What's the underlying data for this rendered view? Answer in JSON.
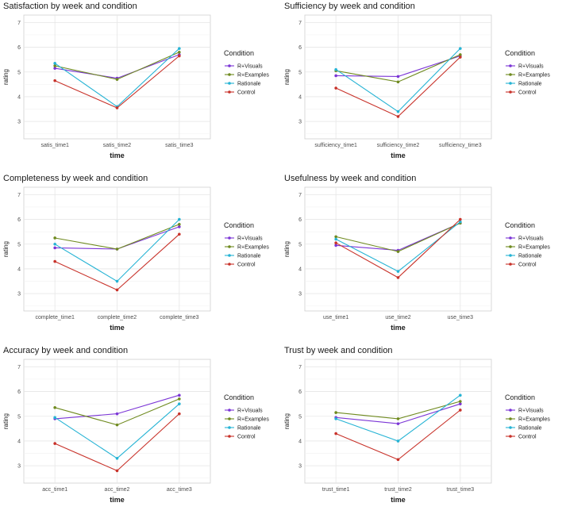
{
  "legend": {
    "title": "Condition",
    "series": [
      {
        "name": "R+Visuals",
        "color": "#7b35d6"
      },
      {
        "name": "R+Examples",
        "color": "#6f8a1f"
      },
      {
        "name": "Rationale",
        "color": "#25b3d4"
      },
      {
        "name": "Control",
        "color": "#c8322a"
      }
    ]
  },
  "chart_data": [
    {
      "type": "line",
      "title": "Satisfaction by week and condition",
      "xlabel": "time",
      "ylabel": "rating",
      "categories": [
        "satis_time1",
        "satis_time2",
        "satis_time3"
      ],
      "ylim": [
        2.3,
        7.3
      ],
      "yticks": [
        3,
        4,
        5,
        6,
        7
      ],
      "series": [
        {
          "name": "R+Visuals",
          "values": [
            5.15,
            4.75,
            5.7
          ]
        },
        {
          "name": "R+Examples",
          "values": [
            5.25,
            4.7,
            5.8
          ]
        },
        {
          "name": "Rationale",
          "values": [
            5.35,
            3.6,
            5.95
          ]
        },
        {
          "name": "Control",
          "values": [
            4.65,
            3.55,
            5.65
          ]
        }
      ]
    },
    {
      "type": "line",
      "title": "Sufficiency by week and condition",
      "xlabel": "time",
      "ylabel": "rating",
      "categories": [
        "sufficiency_time1",
        "sufficiency_time2",
        "sufficiency_time3"
      ],
      "ylim": [
        2.3,
        7.3
      ],
      "yticks": [
        3,
        4,
        5,
        6,
        7
      ],
      "series": [
        {
          "name": "R+Visuals",
          "values": [
            4.85,
            4.82,
            5.65
          ]
        },
        {
          "name": "R+Examples",
          "values": [
            5.05,
            4.6,
            5.7
          ]
        },
        {
          "name": "Rationale",
          "values": [
            5.1,
            3.4,
            5.95
          ]
        },
        {
          "name": "Control",
          "values": [
            4.35,
            3.2,
            5.6
          ]
        }
      ]
    },
    {
      "type": "line",
      "title": "Completeness by week and condition",
      "xlabel": "time",
      "ylabel": "rating",
      "categories": [
        "complete_time1",
        "complete_time2",
        "complete_time3"
      ],
      "ylim": [
        2.3,
        7.3
      ],
      "yticks": [
        3,
        4,
        5,
        6,
        7
      ],
      "series": [
        {
          "name": "R+Visuals",
          "values": [
            4.85,
            4.8,
            5.7
          ]
        },
        {
          "name": "R+Examples",
          "values": [
            5.25,
            4.8,
            5.8
          ]
        },
        {
          "name": "Rationale",
          "values": [
            5.0,
            3.5,
            6.0
          ]
        },
        {
          "name": "Control",
          "values": [
            4.3,
            3.15,
            5.4
          ]
        }
      ]
    },
    {
      "type": "line",
      "title": "Usefulness by week and condition",
      "xlabel": "time",
      "ylabel": "rating",
      "categories": [
        "use_time1",
        "use_time2",
        "use_time3"
      ],
      "ylim": [
        2.3,
        7.3
      ],
      "yticks": [
        3,
        4,
        5,
        6,
        7
      ],
      "series": [
        {
          "name": "R+Visuals",
          "values": [
            4.95,
            4.75,
            5.85
          ]
        },
        {
          "name": "R+Examples",
          "values": [
            5.3,
            4.7,
            5.85
          ]
        },
        {
          "name": "Rationale",
          "values": [
            5.2,
            3.9,
            5.9
          ]
        },
        {
          "name": "Control",
          "values": [
            5.05,
            3.65,
            6.0
          ]
        }
      ]
    },
    {
      "type": "line",
      "title": "Accuracy by week and condition",
      "xlabel": "time",
      "ylabel": "rating",
      "categories": [
        "acc_time1",
        "acc_time2",
        "acc_time3"
      ],
      "ylim": [
        2.3,
        7.3
      ],
      "yticks": [
        3,
        4,
        5,
        6,
        7
      ],
      "series": [
        {
          "name": "R+Visuals",
          "values": [
            4.9,
            5.1,
            5.85
          ]
        },
        {
          "name": "R+Examples",
          "values": [
            5.35,
            4.65,
            5.7
          ]
        },
        {
          "name": "Rationale",
          "values": [
            4.95,
            3.3,
            5.5
          ]
        },
        {
          "name": "Control",
          "values": [
            3.9,
            2.8,
            5.1
          ]
        }
      ]
    },
    {
      "type": "line",
      "title": "Trust by week and condition",
      "xlabel": "time",
      "ylabel": "rating",
      "categories": [
        "trust_time1",
        "trust_time2",
        "trust_time3"
      ],
      "ylim": [
        2.3,
        7.3
      ],
      "yticks": [
        3,
        4,
        5,
        6,
        7
      ],
      "series": [
        {
          "name": "R+Visuals",
          "values": [
            4.95,
            4.7,
            5.5
          ]
        },
        {
          "name": "R+Examples",
          "values": [
            5.15,
            4.9,
            5.6
          ]
        },
        {
          "name": "Rationale",
          "values": [
            4.9,
            4.0,
            5.85
          ]
        },
        {
          "name": "Control",
          "values": [
            4.3,
            3.25,
            5.25
          ]
        }
      ]
    }
  ]
}
